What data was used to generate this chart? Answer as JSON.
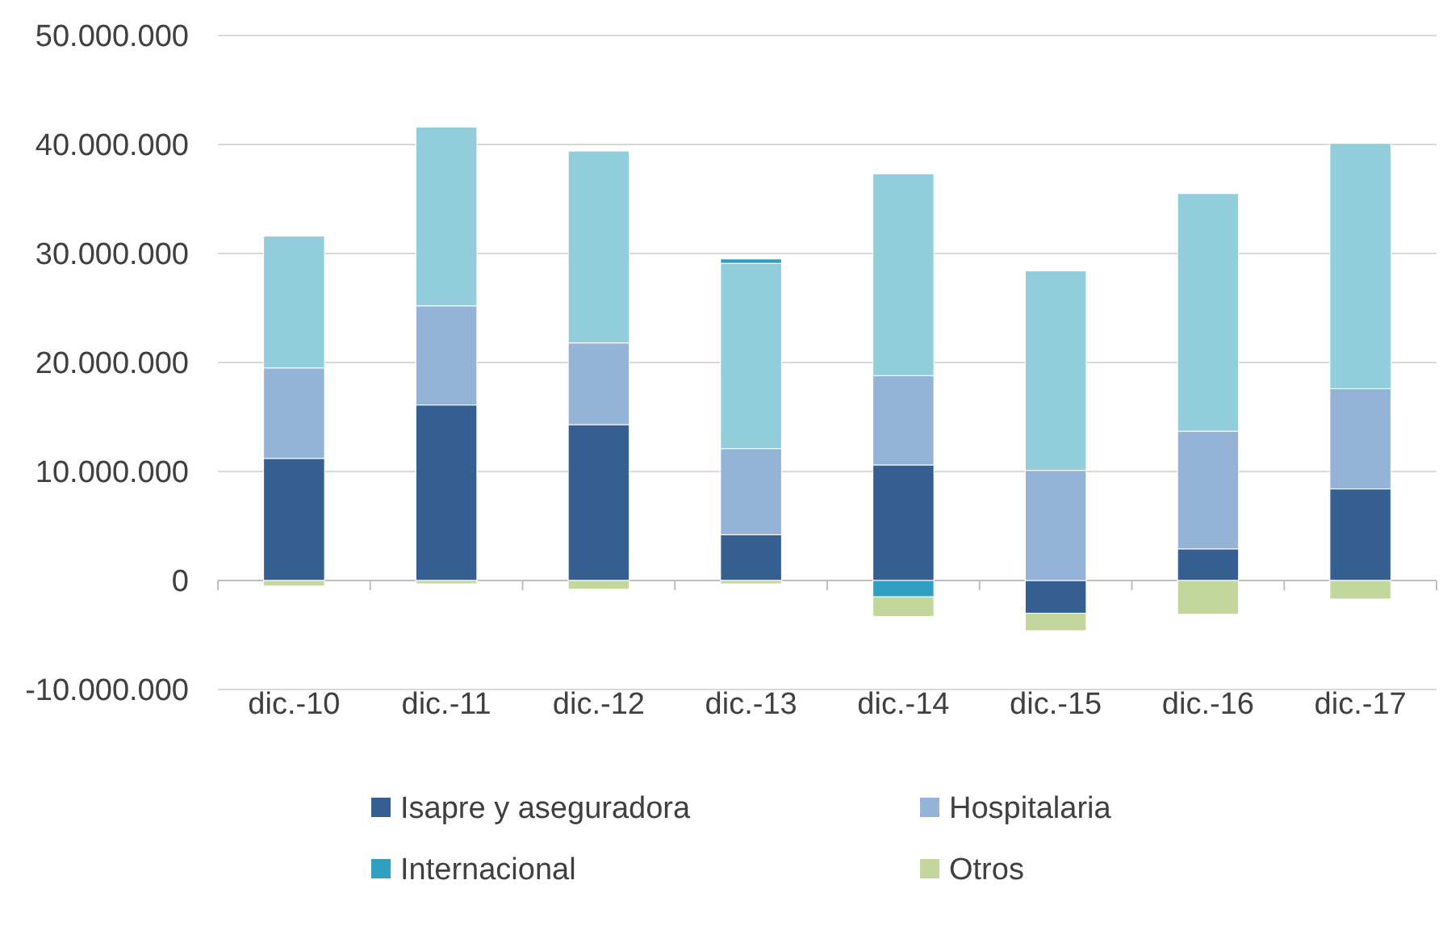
{
  "chart_data": {
    "type": "bar",
    "stacked": true,
    "categories": [
      "dic.-10",
      "dic.-11",
      "dic.-12",
      "dic.-13",
      "dic.-14",
      "dic.-15",
      "dic.-16",
      "dic.-17"
    ],
    "series": [
      {
        "name": "Isapre y aseguradora",
        "color": "#365f91",
        "values": [
          11200000,
          16100000,
          14300000,
          4200000,
          10600000,
          -3000000,
          2900000,
          8400000
        ]
      },
      {
        "name": "Hospitalaria",
        "color": "#95b3d7",
        "values": [
          8300000,
          9100000,
          7500000,
          7900000,
          8200000,
          10100000,
          10800000,
          9200000
        ]
      },
      {
        "color": "#92cddc",
        "values": [
          12100000,
          16400000,
          17600000,
          17000000,
          18500000,
          18300000,
          21800000,
          22500000
        ]
      },
      {
        "name": "Internacional",
        "color": "#31a0c0",
        "values": [
          null,
          null,
          null,
          400000,
          -1500000,
          null,
          null,
          null
        ]
      },
      {
        "name": "Otros",
        "color": "#c3d69b",
        "values": [
          -500000,
          -300000,
          -800000,
          -300000,
          -1800000,
          -1600000,
          -3100000,
          -1700000
        ]
      }
    ],
    "ylim": [
      -10000000,
      50000000
    ],
    "yticks": [
      {
        "value": -10000000,
        "label": "-10.000.000"
      },
      {
        "value": 0,
        "label": "0"
      },
      {
        "value": 10000000,
        "label": "10.000.000"
      },
      {
        "value": 20000000,
        "label": "20.000.000"
      },
      {
        "value": 30000000,
        "label": "30.000.000"
      },
      {
        "value": 40000000,
        "label": "40.000.000"
      },
      {
        "value": 50000000,
        "label": "50.000.000"
      }
    ],
    "grid": "y",
    "legend": "bottom"
  }
}
